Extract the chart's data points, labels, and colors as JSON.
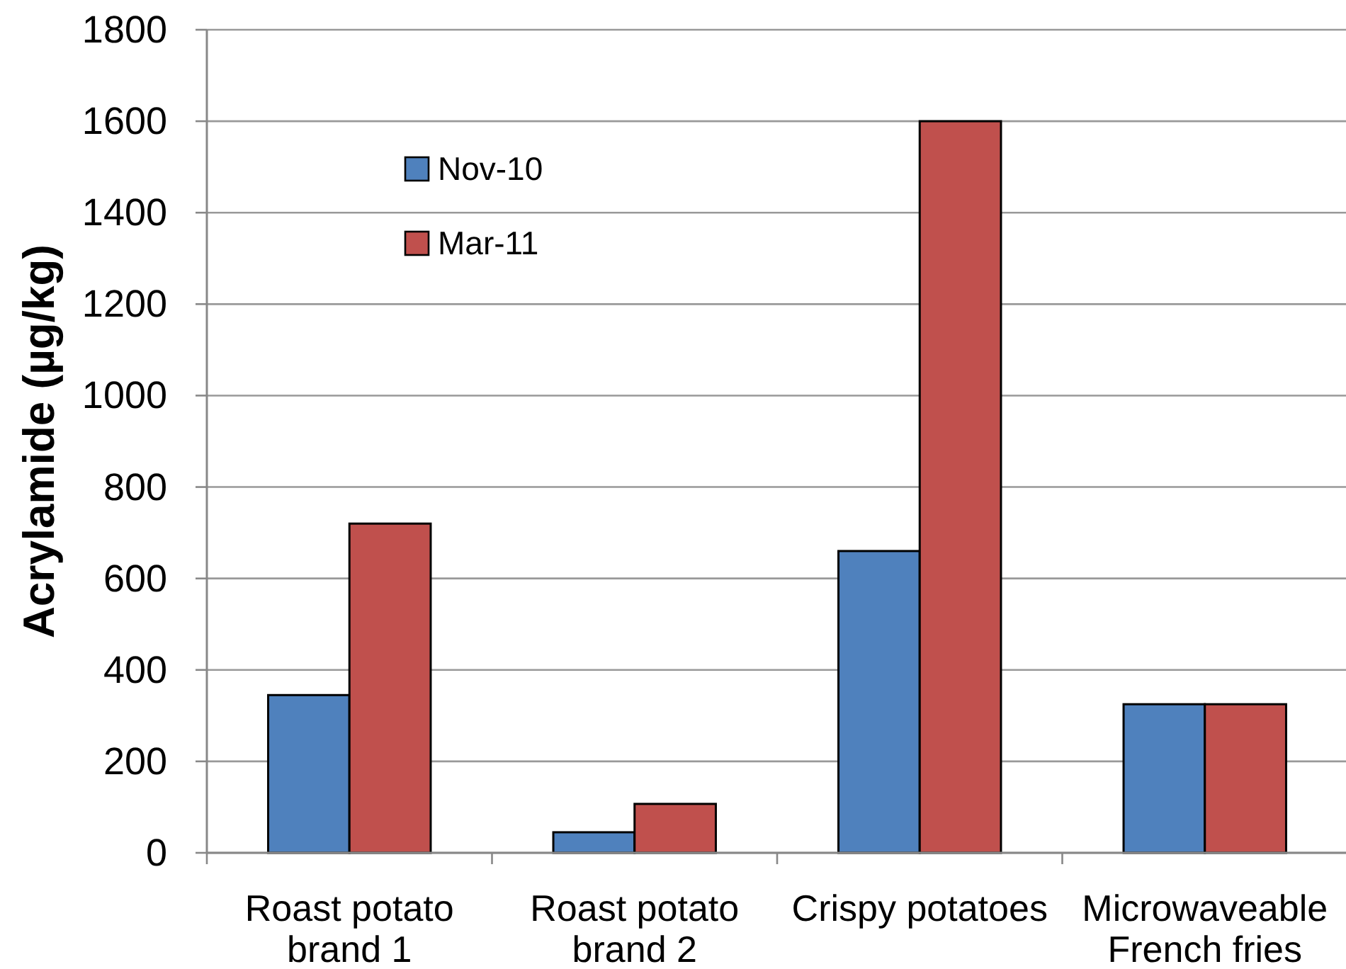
{
  "chart_data": {
    "type": "bar",
    "ylabel": "Acrylamide (µg/kg)",
    "categories": [
      "Roast potato brand 1",
      "Roast potato brand 2",
      "Crispy potatoes",
      "Microwaveable French fries"
    ],
    "series": [
      {
        "name": "Nov-10",
        "color": "#4f81bd",
        "values": [
          345,
          45,
          660,
          325
        ]
      },
      {
        "name": "Mar-11",
        "color": "#c0504d",
        "values": [
          720,
          107,
          1600,
          325
        ]
      }
    ],
    "ylim": [
      0,
      1800
    ],
    "yticks": [
      0,
      200,
      400,
      600,
      800,
      1000,
      1200,
      1400,
      1600,
      1800
    ],
    "grid": "y",
    "legend": "top left"
  }
}
